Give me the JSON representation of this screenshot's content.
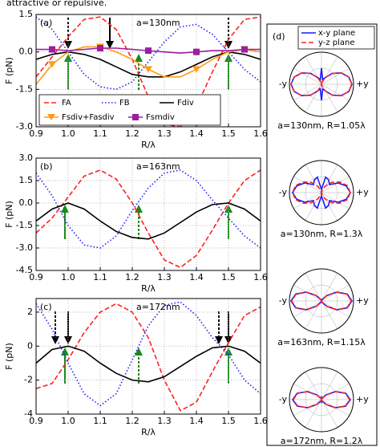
{
  "header_text": "attractive or repulsive.",
  "chart_data": [
    {
      "type": "line",
      "panel_label": "(a)",
      "annotation": "a=130nm",
      "xlabel": "R/λ",
      "ylabel": "F (pN)",
      "x": [
        0.9,
        0.95,
        1.0,
        1.05,
        1.1,
        1.15,
        1.2,
        1.25,
        1.3,
        1.35,
        1.4,
        1.45,
        1.5,
        1.55,
        1.6
      ],
      "xlim": [
        0.9,
        1.6
      ],
      "xticks": [
        0.9,
        {
          "value": 1,
          "label": "1.0"
        },
        1.1,
        1.2,
        1.3,
        1.4,
        1.5,
        1.6
      ],
      "ylim": [
        -3,
        1.5
      ],
      "yticks": [
        {
          "value": -3,
          "label": "-3.0"
        },
        -1.5,
        {
          "value": 0,
          "label": "0.0"
        },
        1.5
      ],
      "grid": true,
      "legend": true,
      "legend_position": "lower left",
      "series": [
        {
          "name": "FA",
          "color": "#ff2020",
          "dash": "dashed",
          "values": [
            -1.0,
            -0.2,
            0.6,
            1.3,
            1.4,
            0.9,
            -0.3,
            -1.8,
            -2.9,
            -3.0,
            -2.2,
            -0.8,
            0.5,
            1.3,
            1.4
          ]
        },
        {
          "name": "FB",
          "color": "#2020ff",
          "dash": "dotted",
          "values": [
            1.4,
            0.9,
            0.0,
            -0.9,
            -1.4,
            -1.5,
            -1.2,
            -0.4,
            0.4,
            1.0,
            1.1,
            0.7,
            0.0,
            -0.7,
            -1.2
          ]
        },
        {
          "name": "Fdiv",
          "color": "#000000",
          "dash": "solid",
          "values": [
            -0.3,
            -0.1,
            0.0,
            -0.1,
            -0.3,
            -0.6,
            -0.9,
            -1.0,
            -1.0,
            -0.8,
            -0.5,
            -0.2,
            0.0,
            -0.1,
            -0.3
          ]
        },
        {
          "name": "Fsdiv+Fasdiv",
          "color": "#ff9a1a",
          "dash": "solid",
          "marker": "triangle",
          "values": [
            -1.3,
            -0.5,
            0.0,
            0.2,
            0.2,
            0.0,
            -0.3,
            -0.7,
            -1.0,
            -1.0,
            -0.7,
            -0.3,
            0.0,
            0.1,
            0.0
          ]
        },
        {
          "name": "Fsmdiv",
          "color": "#9b1fa0",
          "dash": "solid",
          "marker": "square",
          "values": [
            0.1,
            0.1,
            0.05,
            0.1,
            0.15,
            0.15,
            0.1,
            0.05,
            0.0,
            -0.05,
            0.0,
            0.05,
            0.05,
            0.1,
            0.1
          ]
        }
      ]
    },
    {
      "type": "line",
      "panel_label": "(b)",
      "annotation": "a=163nm",
      "xlabel": "R/λ",
      "ylabel": "F (pN)",
      "x": [
        0.9,
        0.95,
        1.0,
        1.05,
        1.1,
        1.15,
        1.2,
        1.25,
        1.3,
        1.35,
        1.4,
        1.45,
        1.5,
        1.55,
        1.6
      ],
      "xlim": [
        0.9,
        1.6
      ],
      "xticks": [
        0.9,
        {
          "value": 1,
          "label": "1.0"
        },
        1.1,
        1.2,
        1.3,
        1.4,
        1.5,
        1.6
      ],
      "ylim": [
        -4.5,
        3
      ],
      "yticks": [
        -4.5,
        {
          "value": -3,
          "label": "-3.0"
        },
        -1.5,
        {
          "value": 0,
          "label": "0.0"
        },
        1.5,
        {
          "value": 3,
          "label": "3.0"
        }
      ],
      "grid": true,
      "legend": false,
      "series": [
        {
          "color": "#ff2020",
          "dash": "dashed",
          "values": [
            -2.0,
            -1.0,
            0.4,
            1.8,
            2.2,
            1.6,
            0.0,
            -2.0,
            -3.8,
            -4.3,
            -3.5,
            -1.8,
            0.0,
            1.5,
            2.2
          ]
        },
        {
          "color": "#2020ff",
          "dash": "dotted",
          "values": [
            2.0,
            0.5,
            -1.5,
            -2.8,
            -3.0,
            -2.2,
            -0.5,
            1.0,
            2.0,
            2.2,
            1.5,
            0.2,
            -1.0,
            -2.2,
            -3.0
          ]
        },
        {
          "color": "#000000",
          "dash": "solid",
          "values": [
            -1.2,
            -0.4,
            0.0,
            -0.4,
            -1.2,
            -1.9,
            -2.3,
            -2.4,
            -2.0,
            -1.3,
            -0.6,
            -0.1,
            0.0,
            -0.4,
            -1.2
          ]
        }
      ]
    },
    {
      "type": "line",
      "panel_label": "(c)",
      "annotation": "a=172nm",
      "xlabel": "R/λ",
      "ylabel": "F (pN)",
      "x": [
        0.9,
        0.95,
        1.0,
        1.05,
        1.1,
        1.15,
        1.2,
        1.25,
        1.3,
        1.35,
        1.4,
        1.45,
        1.5,
        1.55,
        1.6
      ],
      "xlim": [
        0.9,
        1.6
      ],
      "xticks": [
        0.9,
        {
          "value": 1,
          "label": "1.0"
        },
        1.1,
        1.2,
        1.3,
        1.4,
        1.5,
        1.6
      ],
      "ylim": [
        -4,
        2.8
      ],
      "yticks": [
        -4,
        -2,
        0,
        2
      ],
      "grid": true,
      "legend": false,
      "series": [
        {
          "color": "#ff2020",
          "dash": "dashed",
          "values": [
            -2.5,
            -2.2,
            -0.8,
            0.8,
            2.0,
            2.5,
            2.0,
            0.5,
            -2.0,
            -3.8,
            -3.3,
            -1.5,
            0.2,
            1.8,
            2.3
          ]
        },
        {
          "color": "#2020ff",
          "dash": "dotted",
          "values": [
            2.5,
            1.0,
            -1.0,
            -2.8,
            -3.5,
            -2.8,
            -0.8,
            1.2,
            2.4,
            2.6,
            1.8,
            0.5,
            -0.5,
            -2.0,
            -2.8
          ]
        },
        {
          "color": "#000000",
          "dash": "solid",
          "values": [
            -1.0,
            -0.2,
            0.0,
            -0.3,
            -1.0,
            -1.6,
            -2.0,
            -2.1,
            -1.8,
            -1.2,
            -0.6,
            -0.1,
            0.0,
            -0.3,
            -1.0
          ]
        }
      ]
    },
    {
      "type": "polar",
      "panel_label": "(d)",
      "theta": [
        0,
        15,
        30,
        45,
        60,
        75,
        90,
        105,
        120,
        135,
        150,
        165,
        180,
        195,
        210,
        225,
        240,
        255,
        270,
        285,
        300,
        315,
        330,
        345
      ],
      "rlim": [
        0,
        1
      ],
      "rticks": [
        0.5,
        1
      ],
      "series": [
        {
          "name": "x-y plane",
          "color": "#1a1aff",
          "dash": "solid"
        },
        {
          "name": "y-z plane",
          "color": "#ff2020",
          "dash": "dashed"
        }
      ],
      "plots": [
        {
          "title": "a=130nm, R=1.05λ",
          "left_label": "-y",
          "right_label": "+y",
          "values": [
            [
              0.95,
              0.88,
              0.71,
              0.48,
              0.24,
              0.15,
              0.5,
              0.15,
              0.24,
              0.48,
              0.71,
              0.88,
              0.95,
              0.88,
              0.71,
              0.48,
              0.24,
              0.15,
              0.5,
              0.15,
              0.24,
              0.48,
              0.71,
              0.88
            ],
            [
              0.95,
              0.88,
              0.71,
              0.48,
              0.24,
              0.06,
              0,
              0.06,
              0.24,
              0.48,
              0.71,
              0.88,
              0.95,
              0.88,
              0.71,
              0.48,
              0.24,
              0.06,
              0,
              0.06,
              0.24,
              0.48,
              0.71,
              0.88
            ]
          ]
        },
        {
          "title": "a=130nm, R=1.3λ",
          "left_label": "-y",
          "right_label": "+y",
          "values": [
            [
              0.9,
              0.8,
              0.6,
              0.35,
              0.45,
              0.5,
              0.1,
              0.5,
              0.45,
              0.35,
              0.6,
              0.8,
              0.9,
              0.8,
              0.6,
              0.35,
              0.45,
              0.5,
              0.1,
              0.5,
              0.45,
              0.35,
              0.6,
              0.8
            ],
            [
              0.9,
              0.84,
              0.66,
              0.45,
              0.22,
              0.06,
              0,
              0.06,
              0.22,
              0.45,
              0.66,
              0.84,
              0.9,
              0.84,
              0.66,
              0.45,
              0.22,
              0.06,
              0,
              0.06,
              0.22,
              0.45,
              0.66,
              0.84
            ]
          ]
        },
        {
          "title": "a=163nm, R=1.15λ",
          "left_label": "-y",
          "right_label": "+y",
          "values": [
            [
              0.95,
              0.83,
              0.55,
              0.24,
              0.06,
              0.01,
              0,
              0.01,
              0.06,
              0.24,
              0.55,
              0.83,
              0.95,
              0.83,
              0.55,
              0.24,
              0.06,
              0.01,
              0,
              0.01,
              0.06,
              0.24,
              0.55,
              0.83
            ],
            [
              0.93,
              0.82,
              0.54,
              0.24,
              0.06,
              0.01,
              0,
              0.01,
              0.06,
              0.24,
              0.54,
              0.82,
              0.93,
              0.82,
              0.54,
              0.24,
              0.06,
              0.01,
              0,
              0.01,
              0.06,
              0.24,
              0.54,
              0.82
            ]
          ]
        },
        {
          "title": "a=172nm, R=1.2λ",
          "left_label": "-y",
          "right_label": "+y",
          "values": [
            [
              0.9,
              0.78,
              0.5,
              0.22,
              0.06,
              0.05,
              0.08,
              0.05,
              0.06,
              0.22,
              0.5,
              0.78,
              0.9,
              0.78,
              0.5,
              0.22,
              0.06,
              0.05,
              0.08,
              0.05,
              0.06,
              0.22,
              0.5,
              0.78
            ],
            [
              0.88,
              0.77,
              0.5,
              0.22,
              0.06,
              0.01,
              0,
              0.01,
              0.06,
              0.22,
              0.5,
              0.77,
              0.88,
              0.77,
              0.5,
              0.22,
              0.06,
              0.01,
              0,
              0.01,
              0.06,
              0.22,
              0.5,
              0.77
            ]
          ]
        }
      ]
    }
  ]
}
